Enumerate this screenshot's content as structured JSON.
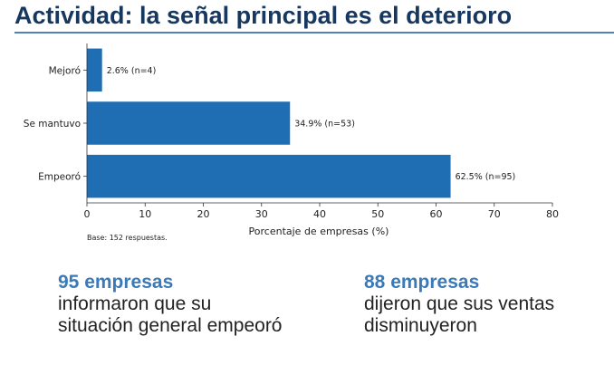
{
  "title": "Actividad: la señal principal es el deterioro",
  "chart_data": {
    "type": "bar",
    "orientation": "horizontal",
    "categories": [
      "Mejoró",
      "Se mantuvo",
      "Empeoró"
    ],
    "values": [
      2.6,
      34.9,
      62.5
    ],
    "data_labels": [
      "2.6%  (n=4)",
      "34.9%  (n=53)",
      "62.5%  (n=95)"
    ],
    "xlabel": "Porcentaje de empresas (%)",
    "ylabel": "",
    "xlim": [
      0,
      80
    ],
    "xticks": [
      0,
      10,
      20,
      30,
      40,
      50,
      60,
      70,
      80
    ],
    "bar_color": "#1f6eb4",
    "grid": false,
    "note": "Base: 152 respuestas."
  },
  "stats": [
    {
      "number": "95 empresas",
      "text": "informaron que su situación general empeoró"
    },
    {
      "number": "88 empresas",
      "text": "dijeron que sus ventas disminuyeron"
    }
  ],
  "colors": {
    "title": "#17375e",
    "rule": "#4f81bd",
    "stat_number": "#3a7ab8"
  }
}
